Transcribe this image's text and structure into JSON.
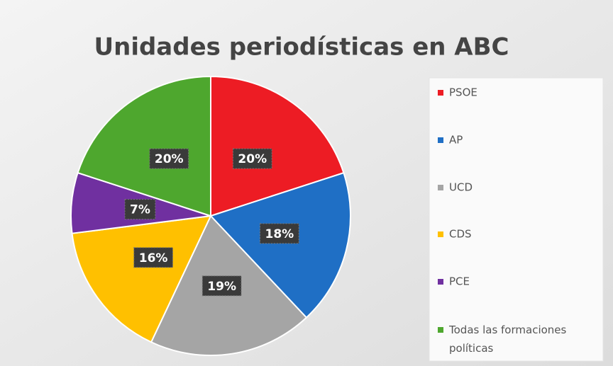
{
  "chart_data": {
    "type": "pie",
    "title": "Unidades periodísticas en ABC",
    "categories": [
      "PSOE",
      "AP",
      "UCD",
      "CDS",
      "PCE",
      "Todas las formaciones políticas"
    ],
    "values": [
      20,
      18,
      19,
      16,
      7,
      20
    ],
    "value_labels": [
      "20%",
      "18%",
      "19%",
      "16%",
      "7%",
      "20%"
    ],
    "colors": [
      "#ed1c24",
      "#1f6fc5",
      "#a5a5a5",
      "#ffc000",
      "#7030a0",
      "#4ea72e"
    ],
    "legend": "right"
  }
}
